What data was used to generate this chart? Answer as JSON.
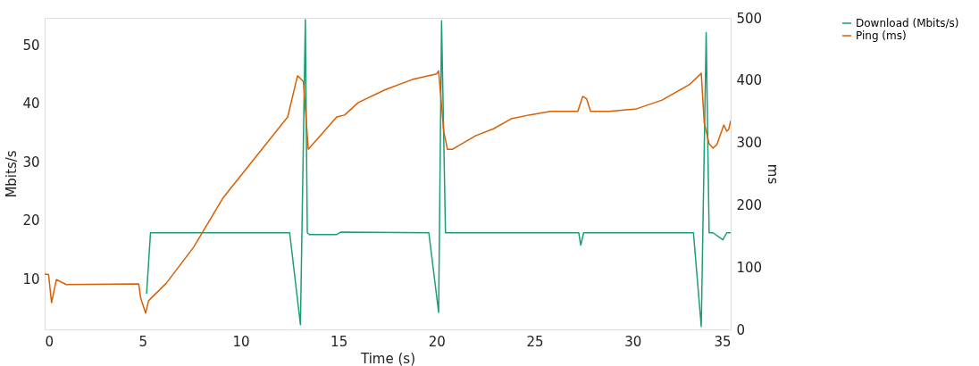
{
  "chart_data": {
    "type": "line",
    "xlabel": "Time (s)",
    "ylabel": "Mbits/s",
    "y2label": "ms",
    "xlim": [
      0,
      35
    ],
    "xticks": [
      0,
      5,
      10,
      15,
      20,
      25,
      30,
      35
    ],
    "ylim": [
      1.4,
      54.6
    ],
    "yticks": [
      10,
      20,
      30,
      40,
      50
    ],
    "y2lim": [
      0,
      500
    ],
    "y2ticks": [
      0,
      100,
      200,
      300,
      400,
      500
    ],
    "grid": false,
    "legend": "top right",
    "marker": "none",
    "line_style": "solid",
    "series": [
      {
        "name": "Download (Mbits/s)",
        "color": "#1b9e77",
        "x": [
          5.2,
          5.4,
          12.5,
          13.05,
          13.3,
          13.4,
          13.5,
          14.9,
          15.1,
          19.6,
          20.1,
          20.25,
          20.45,
          27.25,
          27.35,
          27.5,
          33.1,
          33.5,
          33.75,
          33.9,
          34.1,
          34.6,
          34.8,
          35
        ],
        "values": [
          7.5,
          17.9,
          17.9,
          2.2,
          54.3,
          17.9,
          17.6,
          17.6,
          18.0,
          17.9,
          4.3,
          54.1,
          17.9,
          17.9,
          15.8,
          17.9,
          17.9,
          1.9,
          52.1,
          17.9,
          17.9,
          16.7,
          17.9,
          17.9
        ]
      },
      {
        "name": "Ping (ms)",
        "color": "#d95f02",
        "axis": "y2",
        "x": [
          0,
          0.2,
          0.35,
          0.6,
          1.1,
          4.8,
          4.9,
          5.15,
          5.3,
          6.2,
          7.6,
          9.1,
          12.4,
          12.9,
          13.2,
          13.45,
          14.9,
          15.3,
          16,
          17.4,
          18.75,
          20,
          20.1,
          20.36,
          20.55,
          20.8,
          22,
          22.9,
          23.8,
          24.7,
          25.8,
          27.2,
          27.45,
          27.65,
          27.85,
          28.8,
          30.2,
          31.5,
          32.9,
          33.5,
          33.65,
          33.9,
          34.1,
          34.3,
          34.65,
          34.8,
          34.9,
          35
        ],
        "values": [
          89,
          88,
          43,
          80,
          72,
          73,
          50,
          26,
          46,
          74,
          132,
          211,
          341,
          407,
          398,
          289,
          341,
          344,
          364,
          385,
          401,
          410,
          415,
          318,
          289,
          289,
          311,
          322,
          338,
          344,
          350,
          350,
          374,
          370,
          350,
          350,
          354,
          368,
          393,
          411,
          332,
          298,
          291,
          297,
          328,
          318,
          321,
          335
        ]
      }
    ]
  }
}
